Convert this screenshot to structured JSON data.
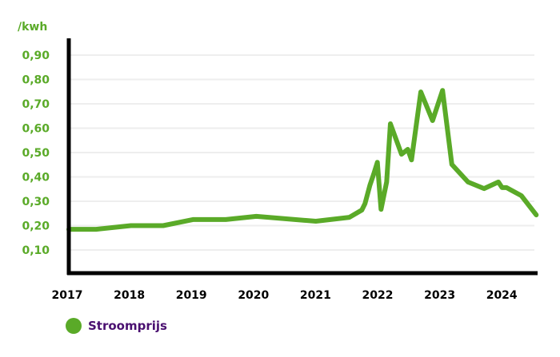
{
  "chart_data": {
    "type": "line",
    "title": "",
    "ylabel": "/kwh",
    "xlabel": "",
    "xlim": [
      2017,
      2024.75
    ],
    "ylim": [
      0,
      0.9
    ],
    "grid": true,
    "legend_position": "bottom-left",
    "x_ticks": [
      "2017",
      "2018",
      "2019",
      "2020",
      "2021",
      "2022",
      "2023",
      "2024"
    ],
    "y_ticks": [
      "0,10",
      "0,20",
      "0,30",
      "0,40",
      "0,50",
      "0,60",
      "0,70",
      "0,80",
      "0,90"
    ],
    "series": [
      {
        "name": "Stroomprijs",
        "color": "#5aaa28",
        "x": [
          2017.0,
          2017.44,
          2018.0,
          2018.52,
          2019.0,
          2019.53,
          2020.02,
          2020.98,
          2021.52,
          2021.72,
          2021.77,
          2021.85,
          2021.91,
          2021.97,
          2022.03,
          2022.12,
          2022.18,
          2022.36,
          2022.46,
          2022.52,
          2022.67,
          2022.86,
          2023.02,
          2023.17,
          2023.43,
          2023.69,
          2023.92,
          2023.98,
          2024.05,
          2024.29,
          2024.53
        ],
        "y": [
          0.185,
          0.185,
          0.2,
          0.2,
          0.225,
          0.225,
          0.238,
          0.218,
          0.234,
          0.264,
          0.29,
          0.366,
          0.41,
          0.46,
          0.267,
          0.379,
          0.618,
          0.493,
          0.513,
          0.47,
          0.749,
          0.631,
          0.755,
          0.451,
          0.379,
          0.352,
          0.379,
          0.356,
          0.356,
          0.323,
          0.244
        ]
      }
    ]
  },
  "colors": {
    "accent": "#5aaa28",
    "legend_text": "#4a1070",
    "axis": "#000000",
    "grid": "#eeeeee"
  }
}
